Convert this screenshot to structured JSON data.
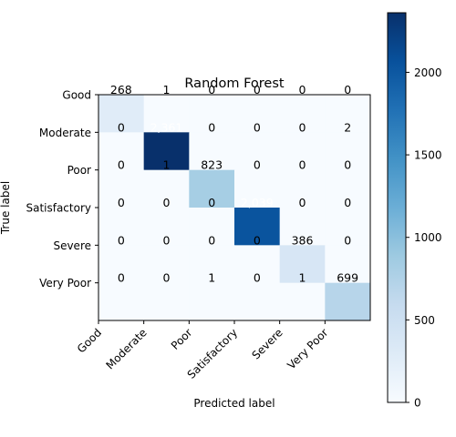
{
  "chart_data": {
    "type": "heatmap",
    "title": "Random Forest",
    "xlabel": "Predicted label",
    "ylabel": "True label",
    "row_labels": [
      "Good",
      "Moderate",
      "Poor",
      "Satisfactory",
      "Severe",
      "Very Poor"
    ],
    "col_labels": [
      "Good",
      "Moderate",
      "Poor",
      "Satisfactory",
      "Severe",
      "Very Poor"
    ],
    "values": [
      [
        268,
        1,
        0,
        0,
        0,
        0
      ],
      [
        0,
        2361,
        0,
        0,
        0,
        2
      ],
      [
        0,
        1,
        823,
        0,
        0,
        0
      ],
      [
        0,
        0,
        0,
        2039,
        0,
        0
      ],
      [
        0,
        0,
        0,
        0,
        386,
        0
      ],
      [
        0,
        0,
        1,
        0,
        1,
        699
      ]
    ],
    "cell_labels": [
      [
        "268",
        "1",
        "0",
        "0",
        "0",
        "0"
      ],
      [
        "0",
        "2,361",
        "0",
        "0",
        "0",
        "2"
      ],
      [
        "0",
        "1",
        "823",
        "0",
        "0",
        "0"
      ],
      [
        "0",
        "0",
        "0",
        "2,039",
        "0",
        "0"
      ],
      [
        "0",
        "0",
        "0",
        "0",
        "386",
        "0"
      ],
      [
        "0",
        "0",
        "1",
        "0",
        "1",
        "699"
      ]
    ],
    "colormap": "Blues",
    "colorbar": {
      "min": 0,
      "max": 2361,
      "ticks": [
        0,
        500,
        1000,
        1500,
        2000
      ]
    },
    "grid": false
  }
}
